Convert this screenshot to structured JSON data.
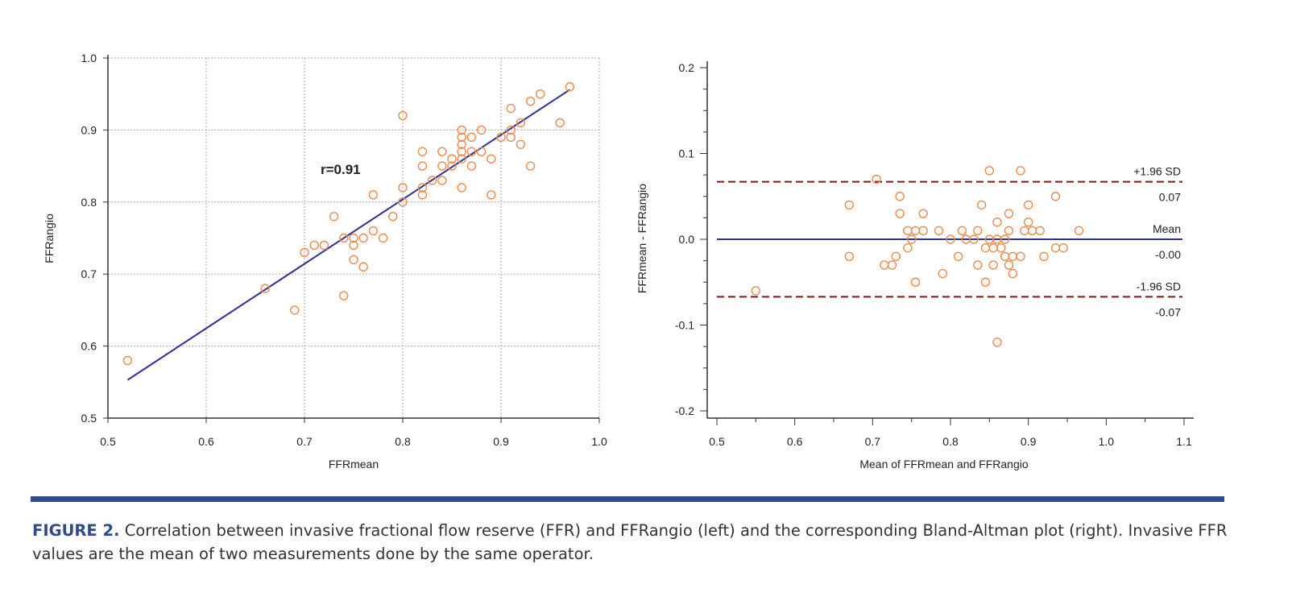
{
  "chart_data": [
    {
      "type": "scatter",
      "xlabel": "FFRmean",
      "ylabel": "FFRangio",
      "xlim": [
        0.5,
        1.0
      ],
      "ylim": [
        0.5,
        1.0
      ],
      "xticks": [
        "0.5",
        "0.6",
        "0.7",
        "0.8",
        "0.9",
        "1.0"
      ],
      "yticks": [
        "0.5",
        "0.6",
        "0.7",
        "0.8",
        "0.9",
        "1.0"
      ],
      "grid": true,
      "annotation": "r=0.91",
      "marker_color": "#f0894a",
      "line_color": "#2e3192",
      "regression_line": [
        [
          0.52,
          0.553
        ],
        [
          0.97,
          0.956
        ]
      ],
      "points": [
        [
          0.52,
          0.58
        ],
        [
          0.66,
          0.68
        ],
        [
          0.69,
          0.65
        ],
        [
          0.7,
          0.73
        ],
        [
          0.71,
          0.74
        ],
        [
          0.72,
          0.74
        ],
        [
          0.73,
          0.78
        ],
        [
          0.74,
          0.75
        ],
        [
          0.74,
          0.67
        ],
        [
          0.75,
          0.75
        ],
        [
          0.75,
          0.74
        ],
        [
          0.75,
          0.72
        ],
        [
          0.76,
          0.75
        ],
        [
          0.76,
          0.71
        ],
        [
          0.77,
          0.81
        ],
        [
          0.77,
          0.76
        ],
        [
          0.78,
          0.75
        ],
        [
          0.79,
          0.78
        ],
        [
          0.8,
          0.92
        ],
        [
          0.8,
          0.82
        ],
        [
          0.8,
          0.8
        ],
        [
          0.82,
          0.87
        ],
        [
          0.82,
          0.85
        ],
        [
          0.82,
          0.82
        ],
        [
          0.82,
          0.81
        ],
        [
          0.83,
          0.83
        ],
        [
          0.84,
          0.87
        ],
        [
          0.84,
          0.85
        ],
        [
          0.84,
          0.83
        ],
        [
          0.85,
          0.85
        ],
        [
          0.85,
          0.86
        ],
        [
          0.86,
          0.9
        ],
        [
          0.86,
          0.89
        ],
        [
          0.86,
          0.88
        ],
        [
          0.86,
          0.87
        ],
        [
          0.86,
          0.86
        ],
        [
          0.86,
          0.82
        ],
        [
          0.87,
          0.89
        ],
        [
          0.87,
          0.87
        ],
        [
          0.87,
          0.85
        ],
        [
          0.88,
          0.9
        ],
        [
          0.88,
          0.87
        ],
        [
          0.89,
          0.86
        ],
        [
          0.89,
          0.81
        ],
        [
          0.9,
          0.89
        ],
        [
          0.91,
          0.93
        ],
        [
          0.91,
          0.9
        ],
        [
          0.91,
          0.89
        ],
        [
          0.92,
          0.91
        ],
        [
          0.92,
          0.88
        ],
        [
          0.93,
          0.94
        ],
        [
          0.93,
          0.85
        ],
        [
          0.94,
          0.95
        ],
        [
          0.96,
          0.91
        ],
        [
          0.97,
          0.96
        ]
      ]
    },
    {
      "type": "scatter",
      "xlabel": "Mean of FFRmean and FFRangio",
      "ylabel": "FFRmean - FFRangio",
      "xlim": [
        0.5,
        1.1
      ],
      "ylim": [
        -0.2,
        0.2
      ],
      "xticks": [
        "0.5",
        "0.6",
        "0.7",
        "0.8",
        "0.9",
        "1.0",
        "1.1"
      ],
      "yticks": [
        "-0.2",
        "-0.1",
        "0.0",
        "0.1",
        "0.2"
      ],
      "grid": false,
      "marker_color": "#f0894a",
      "mean_line": {
        "value": 0.0,
        "label": "Mean",
        "value_label": "-0.00",
        "color": "#2e3192"
      },
      "upper_loa": {
        "value": 0.067,
        "label": "+1.96 SD",
        "value_label": "0.07",
        "color": "#7b1a1a"
      },
      "lower_loa": {
        "value": -0.067,
        "label": "-1.96 SD",
        "value_label": "-0.07",
        "color": "#7b1a1a"
      },
      "points": [
        [
          0.55,
          -0.06
        ],
        [
          0.67,
          0.04
        ],
        [
          0.67,
          -0.02
        ],
        [
          0.705,
          0.07
        ],
        [
          0.715,
          -0.03
        ],
        [
          0.725,
          -0.03
        ],
        [
          0.73,
          -0.02
        ],
        [
          0.735,
          0.05
        ],
        [
          0.735,
          0.03
        ],
        [
          0.745,
          0.01
        ],
        [
          0.745,
          -0.01
        ],
        [
          0.75,
          0.0
        ],
        [
          0.755,
          0.01
        ],
        [
          0.755,
          -0.05
        ],
        [
          0.765,
          0.03
        ],
        [
          0.765,
          0.01
        ],
        [
          0.785,
          0.01
        ],
        [
          0.79,
          -0.04
        ],
        [
          0.8,
          0.0
        ],
        [
          0.81,
          -0.02
        ],
        [
          0.815,
          0.01
        ],
        [
          0.82,
          0.0
        ],
        [
          0.83,
          0.0
        ],
        [
          0.835,
          0.01
        ],
        [
          0.835,
          -0.03
        ],
        [
          0.84,
          0.04
        ],
        [
          0.845,
          -0.01
        ],
        [
          0.845,
          -0.05
        ],
        [
          0.85,
          0.08
        ],
        [
          0.85,
          0.0
        ],
        [
          0.855,
          -0.01
        ],
        [
          0.855,
          -0.03
        ],
        [
          0.86,
          0.02
        ],
        [
          0.86,
          0.0
        ],
        [
          0.86,
          -0.12
        ],
        [
          0.865,
          -0.01
        ],
        [
          0.87,
          0.0
        ],
        [
          0.87,
          -0.02
        ],
        [
          0.875,
          0.03
        ],
        [
          0.875,
          0.01
        ],
        [
          0.875,
          -0.03
        ],
        [
          0.88,
          -0.02
        ],
        [
          0.88,
          -0.04
        ],
        [
          0.89,
          0.08
        ],
        [
          0.89,
          -0.02
        ],
        [
          0.895,
          0.01
        ],
        [
          0.9,
          0.04
        ],
        [
          0.9,
          0.02
        ],
        [
          0.905,
          0.01
        ],
        [
          0.915,
          0.01
        ],
        [
          0.92,
          -0.02
        ],
        [
          0.935,
          0.05
        ],
        [
          0.935,
          -0.01
        ],
        [
          0.945,
          -0.01
        ],
        [
          0.965,
          0.01
        ]
      ]
    }
  ],
  "caption": {
    "label": "FIGURE 2.",
    "text": " Correlation between invasive fractional flow reserve (FFR) and FFRangio (left) and the corresponding Bland-Altman plot (right). Invasive FFR values are the mean of two measurements done by the same operator."
  },
  "rule_color": "#2f4b8e"
}
